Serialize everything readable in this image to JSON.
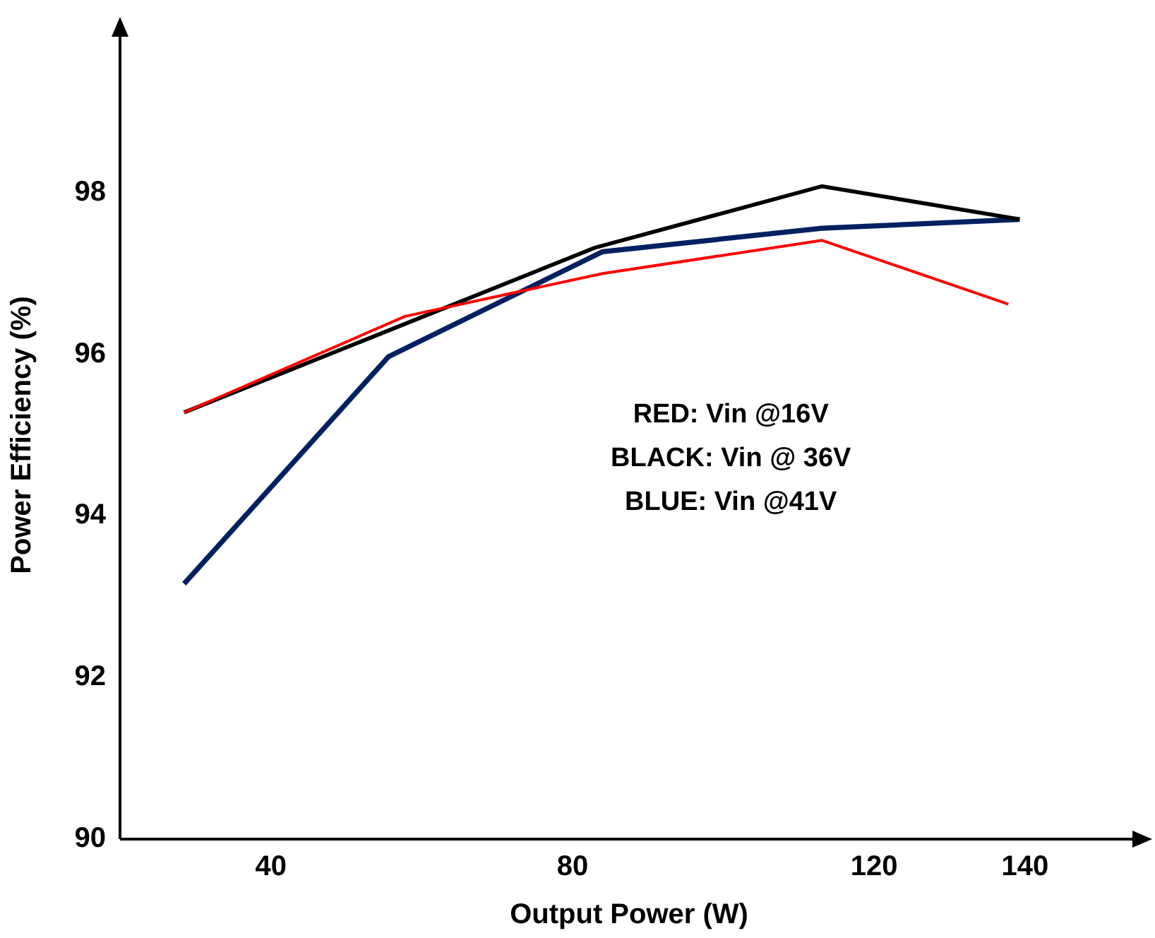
{
  "chart_data": {
    "type": "line",
    "xlabel": "Output Power (W)",
    "ylabel": "Power Efficiency (%)",
    "xlim": [
      20,
      155
    ],
    "xticks": [
      40,
      80,
      120,
      140
    ],
    "ylim": [
      90,
      100
    ],
    "yticks": [
      90,
      92,
      94,
      96,
      98
    ],
    "grid": false,
    "legend": false,
    "marker": "none",
    "line_style": "solid",
    "annotations": [
      "RED: Vin @16V",
      "BLACK: Vin @ 36V",
      "BLUE: Vin @41V"
    ],
    "series": [
      {
        "color": "#ff0000",
        "x": [
          28.5,
          57.8,
          84,
          113.1,
          137.8
        ],
        "values": [
          95.28,
          96.47,
          97.0,
          97.41,
          96.62
        ]
      },
      {
        "color": "#000000",
        "x": [
          28.5,
          83,
          113.1,
          139.3
        ],
        "values": [
          95.28,
          97.32,
          98.08,
          97.67
        ]
      },
      {
        "color": "#002060",
        "x": [
          28.5,
          55.6,
          84,
          113.1,
          139.3
        ],
        "values": [
          93.16,
          95.97,
          97.27,
          97.56,
          97.67
        ]
      }
    ]
  }
}
